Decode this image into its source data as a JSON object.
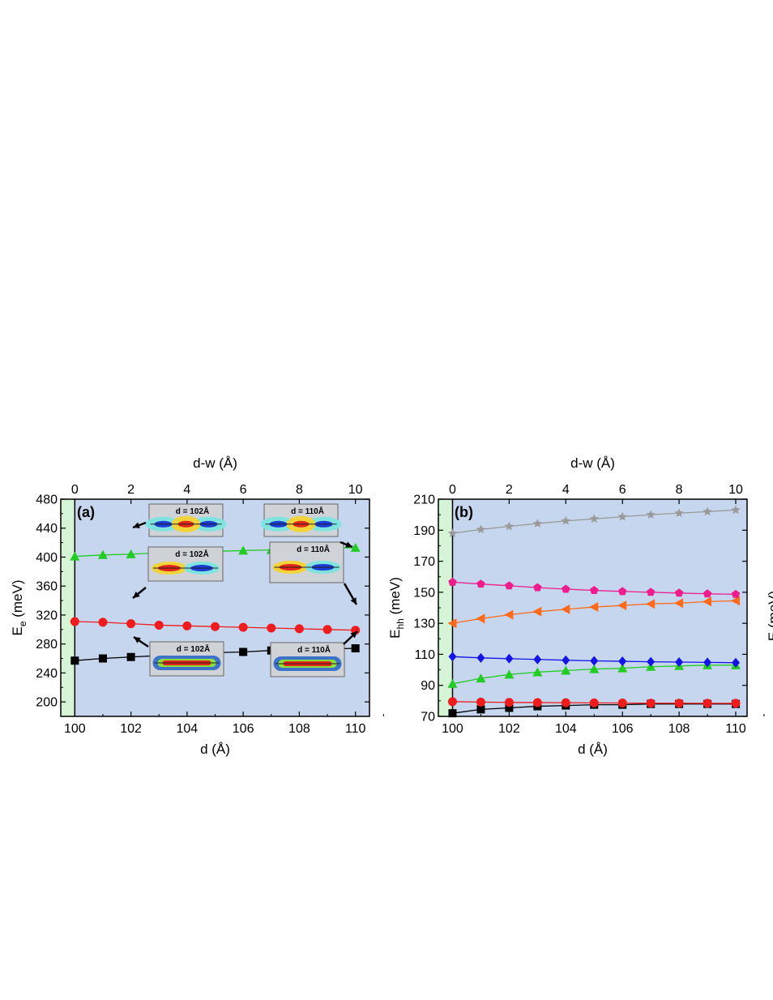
{
  "chart_data": [
    {
      "type": "line",
      "panel_label": "(a)",
      "xlabel": "d (Å)",
      "x2label": "d-w (Å)",
      "ylabel_main": "E",
      "ylabel_sub": "e",
      "ylabel_unit": " (meV)",
      "xlim": [
        99.5,
        110.5
      ],
      "ylim": [
        180,
        480
      ],
      "x2lim": [
        -0.5,
        10.5
      ],
      "xticks": [
        "100",
        "102",
        "104",
        "106",
        "108",
        "110"
      ],
      "yticks": [
        "200",
        "240",
        "280",
        "320",
        "360",
        "400",
        "440",
        "480"
      ],
      "x2ticks": [
        "0",
        "2",
        "4",
        "6",
        "8",
        "10"
      ],
      "shaded_regions": [
        {
          "from": 99.5,
          "to": 100,
          "color": "#d6f5d6"
        },
        {
          "from": 100,
          "to": 110.5,
          "color": "#c5d6ee"
        }
      ],
      "x": [
        100,
        101,
        102,
        103,
        104,
        105,
        106,
        107,
        108,
        109,
        110
      ],
      "series": [
        {
          "marker": "square",
          "color": "#000000",
          "line_color": "#000000",
          "values": [
            257,
            260,
            262,
            264,
            266,
            268,
            269,
            271,
            272,
            273,
            274
          ]
        },
        {
          "marker": "circle",
          "color": "#ee1c1c",
          "line_color": "#ee1c1c",
          "values": [
            311,
            310,
            308,
            306,
            305,
            304,
            303,
            302,
            301,
            300,
            299
          ]
        },
        {
          "marker": "triangle-up",
          "color": "#22cc22",
          "line_color": "#22cc22",
          "values": [
            401,
            403,
            404,
            406,
            407,
            408,
            409,
            410,
            411,
            412,
            413
          ]
        }
      ],
      "insets": [
        {
          "label": "d = 102Å",
          "type": "split"
        },
        {
          "label": "d = 110Å",
          "type": "split"
        },
        {
          "label": "d = 102Å",
          "type": "pair"
        },
        {
          "label": "d = 110Å",
          "type": "pair"
        },
        {
          "label": "d = 102Å",
          "type": "long"
        },
        {
          "label": "d = 110Å",
          "type": "long"
        }
      ]
    },
    {
      "type": "line",
      "panel_label": "(b)",
      "xlabel": "d (Å)",
      "x2label": "d-w (Å)",
      "ylabel_main": "E",
      "ylabel_sub": "hh",
      "ylabel_unit": " (meV)",
      "xlim": [
        99.5,
        110.4
      ],
      "ylim": [
        70,
        210
      ],
      "x2lim": [
        -0.5,
        10.4
      ],
      "xticks": [
        "100",
        "102",
        "104",
        "106",
        "108",
        "110"
      ],
      "yticks": [
        "70",
        "90",
        "110",
        "130",
        "150",
        "170",
        "190",
        "210"
      ],
      "x2ticks": [
        "0",
        "2",
        "4",
        "6",
        "8",
        "10"
      ],
      "shaded_regions": [
        {
          "from": 99.5,
          "to": 100,
          "color": "#d6f5d6"
        },
        {
          "from": 100,
          "to": 110.4,
          "color": "#c5d6ee"
        }
      ],
      "x": [
        100,
        101,
        102,
        103,
        104,
        105,
        106,
        107,
        108,
        109,
        110
      ],
      "series": [
        {
          "marker": "square",
          "color": "#000000",
          "line_color": "#000000",
          "values": [
            72,
            74.5,
            75.5,
            76.5,
            77,
            77.5,
            77.5,
            78,
            78,
            78,
            78
          ]
        },
        {
          "marker": "circle",
          "color": "#ee1c1c",
          "line_color": "#ee1c1c",
          "values": [
            79.5,
            79.2,
            79,
            78.9,
            78.8,
            78.7,
            78.6,
            78.5,
            78.5,
            78.4,
            78.4
          ]
        },
        {
          "marker": "triangle-up",
          "color": "#22cc22",
          "line_color": "#22cc22",
          "values": [
            91,
            94.5,
            97,
            98.5,
            99.5,
            100.5,
            101,
            102,
            102.5,
            103,
            103
          ]
        },
        {
          "marker": "diamond",
          "color": "#1414e6",
          "line_color": "#1414e6",
          "values": [
            108.5,
            107.7,
            107.2,
            106.7,
            106.2,
            105.8,
            105.5,
            105.2,
            105,
            104.8,
            104.6
          ]
        },
        {
          "marker": "triangle-left",
          "color": "#ff6a1a",
          "line_color": "#ff6a1a",
          "values": [
            130,
            133,
            135.5,
            137.5,
            139,
            140.5,
            141.5,
            142.5,
            143,
            144,
            144.5
          ]
        },
        {
          "marker": "pentagon",
          "color": "#ee1c8c",
          "line_color": "#ee1c8c",
          "values": [
            156.5,
            155.3,
            154.2,
            153,
            152,
            151.2,
            150.5,
            150,
            149.5,
            149,
            148.7
          ]
        },
        {
          "marker": "star",
          "color": "#9a9a9a",
          "line_color": "#9a9a9a",
          "values": [
            188,
            190.5,
            192.5,
            194.3,
            196,
            197.3,
            198.7,
            200,
            201,
            202,
            203
          ]
        }
      ]
    }
  ],
  "clipped_label": {
    "text": "E  (meV)"
  }
}
